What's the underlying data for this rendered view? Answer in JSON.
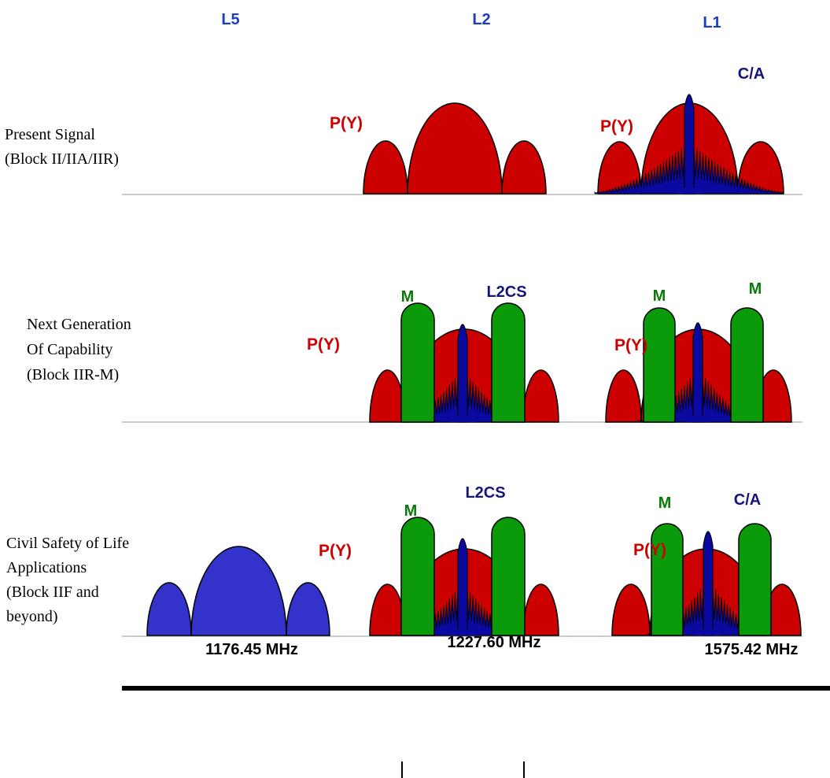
{
  "colors": {
    "py": "#cc0000",
    "ca": "#0a0aa0",
    "m": "#0a9a0a",
    "l5": "#3333cc",
    "band_label": "#1a3fbf",
    "py_label": "#cc0000",
    "ca_label": "#14147a",
    "m_label": "#0a7a0a",
    "baseline": "#bbbbbb",
    "axis": "#000000"
  },
  "bands": {
    "l5": "L5",
    "l2": "L2",
    "l1": "L1"
  },
  "rows": [
    {
      "label_lines": [
        "Present Signal",
        "(Block II/IIA/IIR)"
      ],
      "labels": {
        "l2_py": "P(Y)",
        "l1_py": "P(Y)",
        "l1_ca": "C/A"
      }
    },
    {
      "label_lines": [
        "Next Generation",
        "Of Capability",
        "(Block IIR-M)"
      ],
      "labels": {
        "l2_py": "P(Y)",
        "l2_m": "M",
        "l2_cs": "L2CS",
        "l1_py": "P(Y)",
        "l1_m_left": "M",
        "l1_m_right": "M"
      }
    },
    {
      "label_lines": [
        "Civil Safety of Life",
        "Applications",
        "(Block IIF and",
        "beyond)"
      ],
      "labels": {
        "l2_py": "P(Y)",
        "l2_m": "M",
        "l2_cs": "L2CS",
        "l1_py": "P(Y)",
        "l1_m": "M",
        "l1_ca": "C/A"
      }
    }
  ],
  "frequencies": {
    "l5": "1176.45 MHz",
    "l2": "1227.60 MHz",
    "l1": "1575.42 MHz"
  }
}
